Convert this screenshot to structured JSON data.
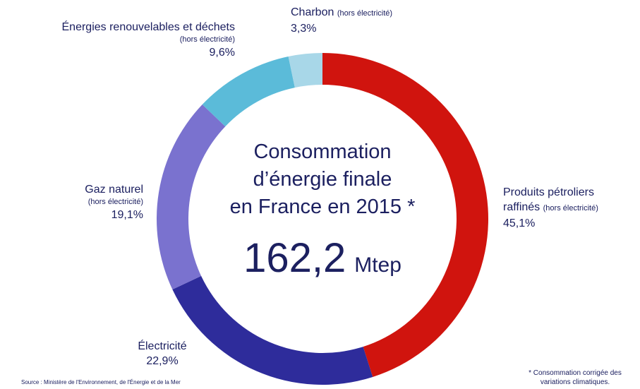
{
  "chart_data": {
    "type": "donut",
    "title_lines": [
      "Consommation",
      "d’énergie finale",
      "en France en 2015 *"
    ],
    "total_label": "162,2",
    "total_unit": "Mtep",
    "categories": [
      "Produits pétroliers raffinés",
      "Électricité",
      "Gaz naturel",
      "Énergies renouvelables et déchets",
      "Charbon"
    ],
    "category_notes": [
      "(hors électricité)",
      null,
      "(hors électricité)",
      "(hors électricité)",
      "(hors électricité)"
    ],
    "values": [
      45.1,
      22.9,
      19.1,
      9.6,
      3.3
    ],
    "value_labels": [
      "45,1%",
      "22,9%",
      "19,1%",
      "9,6%",
      "3,3%"
    ],
    "colors": [
      "#d0140e",
      "#2e2c9b",
      "#7a72cf",
      "#5bbbd9",
      "#a8d7e8"
    ],
    "source": "Source : Ministère de l'Environnement, de l'Énergie et de la Mer",
    "footnote": "* Consommation corrigée des variations climatiques."
  }
}
